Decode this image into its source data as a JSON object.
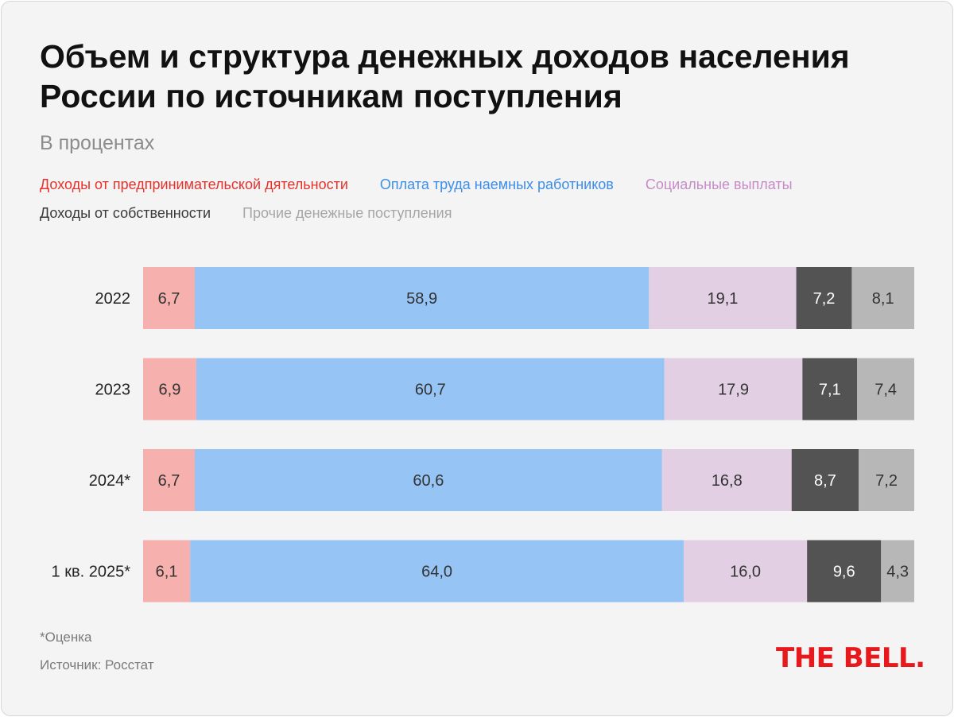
{
  "chart_data": {
    "type": "bar",
    "orientation": "horizontal",
    "stacked": true,
    "title": "Объем и структура денежных доходов населения России по источникам поступления",
    "subtitle": "В процентах",
    "categories": [
      "2022",
      "2023",
      "2024*",
      "1 кв. 2025*"
    ],
    "series": [
      {
        "name": "Доходы от предпринимательской дятельности",
        "color": "#f6b0ad",
        "legend_color": "#e4332d",
        "label_color": "#333333",
        "values": [
          6.7,
          6.9,
          6.7,
          6.1
        ],
        "labels": [
          "6,7",
          "6,9",
          "6,7",
          "6,1"
        ]
      },
      {
        "name": "Оплата труда наемных работников",
        "color": "#96c4f5",
        "legend_color": "#3d8ee8",
        "label_color": "#333333",
        "values": [
          58.9,
          60.7,
          60.6,
          64.0
        ],
        "labels": [
          "58,9",
          "60,7",
          "60,6",
          "64,0"
        ]
      },
      {
        "name": "Социальные выплаты",
        "color": "#e3cfe4",
        "legend_color": "#c58cc8",
        "label_color": "#333333",
        "values": [
          19.1,
          17.9,
          16.8,
          16.0
        ],
        "labels": [
          "19,1",
          "17,9",
          "16,8",
          "16,0"
        ]
      },
      {
        "name": "Доходы от собственности",
        "color": "#535353",
        "legend_color": "#3a3a3a",
        "label_color": "#ffffff",
        "values": [
          7.2,
          7.1,
          8.7,
          9.6
        ],
        "labels": [
          "7,2",
          "7,1",
          "8,7",
          "9,6"
        ]
      },
      {
        "name": "Прочие денежные поступления",
        "color": "#b7b7b7",
        "legend_color": "#a6a6a6",
        "label_color": "#333333",
        "values": [
          8.1,
          7.4,
          7.2,
          4.3
        ],
        "labels": [
          "8,1",
          "7,4",
          "7,2",
          "4,3"
        ]
      }
    ],
    "legend_position": "top",
    "grid": false
  },
  "footnote": "*Оценка",
  "source": "Источник: Росстат",
  "brand": {
    "logo_text": "THE BELL.",
    "color": "#e8191c"
  }
}
